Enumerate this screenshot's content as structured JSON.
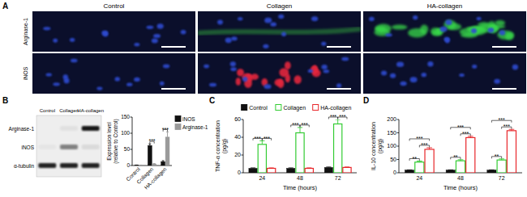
{
  "panel_a": {
    "label": "A",
    "columns": [
      "Control",
      "Collagen",
      "HA-collagen"
    ],
    "rows": [
      "Arginase-1",
      "iNOS"
    ]
  },
  "blot": {
    "lanes": [
      "Control",
      "Collagen",
      "HA-collagen"
    ],
    "rows": [
      "Arginase-1",
      "iNOS",
      "α-tubulin"
    ]
  },
  "chart_data": [
    {
      "panel": "B",
      "type": "bar",
      "categories": [
        "Control",
        "Collagen",
        "HA-collagen"
      ],
      "y_label": [
        "Expression level",
        "(relative to Control)"
      ],
      "ylim": [
        0,
        150
      ],
      "yticks": [
        0,
        50,
        100,
        150
      ],
      "legend": "right",
      "series": [
        {
          "name": "iNOS",
          "color": "#111111",
          "marker": "filled",
          "values": [
            1,
            62,
            12
          ],
          "errors": [
            0.5,
            5,
            3
          ]
        },
        {
          "name": "Arginase-1",
          "color": "#9a9a9a",
          "marker": "filled",
          "values": [
            1,
            5,
            88
          ],
          "errors": [
            0.5,
            1,
            16
          ]
        }
      ],
      "annotations": [
        {
          "text": "***",
          "category": "Collagen",
          "between": [
            "iNOS",
            "Arginase-1"
          ]
        },
        {
          "text": "***",
          "category": "HA-collagen",
          "between": [
            "iNOS",
            "Arginase-1"
          ]
        }
      ]
    },
    {
      "panel": "C",
      "type": "bar",
      "categories": [
        "24",
        "48",
        "72"
      ],
      "x_label": "Time (hours)",
      "y_label": [
        "TNF-α concentration",
        "(pg/g)"
      ],
      "ylim": [
        0,
        60
      ],
      "yticks": [
        0,
        20,
        40,
        60
      ],
      "legend": "top",
      "series": [
        {
          "name": "Control",
          "color": "#111111",
          "marker": "filled",
          "values": [
            5,
            5,
            6
          ],
          "errors": [
            0.5,
            0.5,
            0.5
          ]
        },
        {
          "name": "Collagen",
          "color": "#33cc33",
          "marker": "open",
          "values": [
            32,
            45,
            55
          ],
          "errors": [
            4,
            6,
            5
          ]
        },
        {
          "name": "HA-collagen",
          "color": "#e8262a",
          "marker": "open",
          "values": [
            5,
            5,
            6
          ],
          "errors": [
            0.5,
            0.5,
            0.5
          ]
        }
      ],
      "annotations": [
        {
          "text": "***",
          "category": "24",
          "between": [
            "Control",
            "Collagen"
          ]
        },
        {
          "text": "***",
          "category": "24",
          "between": [
            "Collagen",
            "HA-collagen"
          ]
        },
        {
          "text": "***",
          "category": "48",
          "between": [
            "Control",
            "Collagen"
          ]
        },
        {
          "text": "***",
          "category": "48",
          "between": [
            "Collagen",
            "HA-collagen"
          ]
        },
        {
          "text": "***",
          "category": "72",
          "between": [
            "Control",
            "Collagen"
          ]
        },
        {
          "text": "***",
          "category": "72",
          "between": [
            "Collagen",
            "HA-collagen"
          ]
        }
      ]
    },
    {
      "panel": "D",
      "type": "bar",
      "categories": [
        "24",
        "48",
        "72"
      ],
      "x_label": "Time (hours)",
      "y_label": [
        "IL-10 concentration",
        "(pg/g)"
      ],
      "ylim": [
        0,
        200
      ],
      "yticks": [
        0,
        50,
        100,
        150,
        200
      ],
      "series": [
        {
          "name": "Control",
          "color": "#111111",
          "marker": "filled",
          "values": [
            10,
            10,
            10
          ],
          "errors": [
            1,
            1,
            1
          ]
        },
        {
          "name": "Collagen",
          "color": "#33cc33",
          "marker": "open",
          "values": [
            40,
            45,
            48
          ],
          "errors": [
            4,
            4,
            4
          ]
        },
        {
          "name": "HA-collagen",
          "color": "#e8262a",
          "marker": "open",
          "values": [
            88,
            132,
            158
          ],
          "errors": [
            6,
            5,
            5
          ]
        }
      ],
      "annotations": [
        {
          "text": "**",
          "category": "24",
          "between": [
            "Control",
            "Collagen"
          ]
        },
        {
          "text": "***",
          "category": "24",
          "between": [
            "Collagen",
            "HA-collagen"
          ]
        },
        {
          "text": "***",
          "category": "24",
          "between": [
            "Control",
            "HA-collagen"
          ]
        },
        {
          "text": "**",
          "category": "48",
          "between": [
            "Control",
            "Collagen"
          ]
        },
        {
          "text": "***",
          "category": "48",
          "between": [
            "Collagen",
            "HA-collagen"
          ]
        },
        {
          "text": "***",
          "category": "48",
          "between": [
            "Control",
            "HA-collagen"
          ]
        },
        {
          "text": "**",
          "category": "72",
          "between": [
            "Control",
            "Collagen"
          ]
        },
        {
          "text": "***",
          "category": "72",
          "between": [
            "Collagen",
            "HA-collagen"
          ]
        },
        {
          "text": "***",
          "category": "72",
          "between": [
            "Control",
            "HA-collagen"
          ]
        }
      ]
    }
  ]
}
